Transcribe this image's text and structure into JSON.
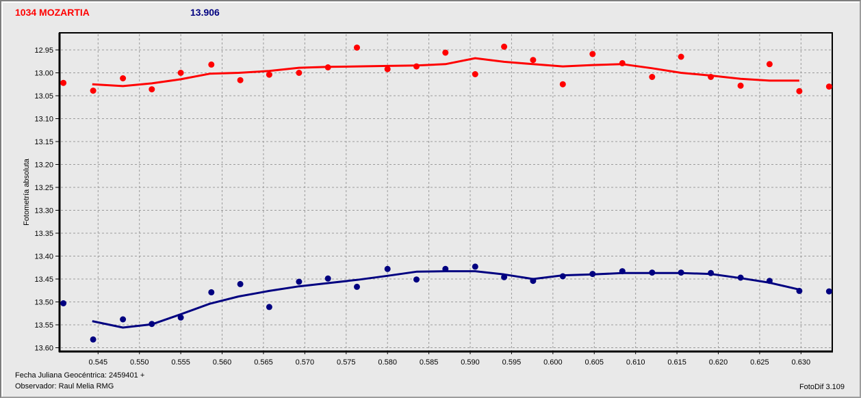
{
  "header": {
    "object": "1034 MOZARTIA",
    "value": "13.906",
    "object_color": "#FF0000",
    "value_color": "#000080"
  },
  "footer": {
    "julian_date": "Fecha Juliana Geocéntrica: 2459401 +",
    "observer": "Observador: Raul Melia RMG",
    "software": "FotoDif 3.109"
  },
  "chart_data": {
    "type": "scatter",
    "title": "1034 MOZARTIA",
    "annotation_value": "13.906",
    "xlabel": "",
    "ylabel": "Fotometría absoluta",
    "x_axis": {
      "min": 0.54034,
      "max": 0.63378,
      "ticks": [
        0.545,
        0.55,
        0.555,
        0.56,
        0.565,
        0.57,
        0.575,
        0.58,
        0.585,
        0.59,
        0.595,
        0.6,
        0.605,
        0.61,
        0.615,
        0.62,
        0.625,
        0.63
      ],
      "tick_decimals": 3
    },
    "y_axis": {
      "min": 12.9127,
      "max": 13.6082,
      "inverted": true,
      "ticks": [
        12.95,
        13.0,
        13.05,
        13.1,
        13.15,
        13.2,
        13.25,
        13.3,
        13.35,
        13.4,
        13.45,
        13.5,
        13.55,
        13.6
      ],
      "tick_decimals": 2
    },
    "grid": {
      "on": true,
      "color": "#9A9A9A",
      "dash": "3 3"
    },
    "series": [
      {
        "name": "red-series",
        "color": "#FF0000",
        "marker": "circle",
        "points": [
          [
            0.5408,
            13.022
          ],
          [
            0.5444,
            13.039
          ],
          [
            0.548,
            13.012
          ],
          [
            0.5515,
            13.036
          ],
          [
            0.555,
            13.0
          ],
          [
            0.5587,
            12.982
          ],
          [
            0.5622,
            13.016
          ],
          [
            0.5657,
            13.004
          ],
          [
            0.5693,
            13.0
          ],
          [
            0.5728,
            12.988
          ],
          [
            0.5763,
            12.945
          ],
          [
            0.58,
            12.992
          ],
          [
            0.5835,
            12.986
          ],
          [
            0.587,
            12.956
          ],
          [
            0.5906,
            13.003
          ],
          [
            0.5941,
            12.943
          ],
          [
            0.5976,
            12.972
          ],
          [
            0.6012,
            13.025
          ],
          [
            0.6048,
            12.959
          ],
          [
            0.6084,
            12.979
          ],
          [
            0.612,
            13.009
          ],
          [
            0.6155,
            12.965
          ],
          [
            0.6191,
            13.009
          ],
          [
            0.6227,
            13.028
          ],
          [
            0.6262,
            12.981
          ],
          [
            0.6298,
            13.04
          ],
          [
            0.6334,
            13.03
          ]
        ],
        "fit_line": [
          [
            0.5443,
            13.025
          ],
          [
            0.548,
            13.029
          ],
          [
            0.5515,
            13.023
          ],
          [
            0.555,
            13.014
          ],
          [
            0.5585,
            13.002
          ],
          [
            0.562,
            13.0
          ],
          [
            0.5657,
            12.996
          ],
          [
            0.5693,
            12.989
          ],
          [
            0.5728,
            12.987
          ],
          [
            0.58,
            12.985
          ],
          [
            0.5835,
            12.984
          ],
          [
            0.587,
            12.981
          ],
          [
            0.5906,
            12.968
          ],
          [
            0.5941,
            12.976
          ],
          [
            0.5976,
            12.981
          ],
          [
            0.6012,
            12.986
          ],
          [
            0.6048,
            12.983
          ],
          [
            0.6084,
            12.981
          ],
          [
            0.612,
            12.99
          ],
          [
            0.6155,
            13.0
          ],
          [
            0.6191,
            13.006
          ],
          [
            0.6227,
            13.013
          ],
          [
            0.6262,
            13.017
          ],
          [
            0.6298,
            13.017
          ]
        ]
      },
      {
        "name": "blue-series",
        "color": "#000080",
        "marker": "circle",
        "points": [
          [
            0.5408,
            13.503
          ],
          [
            0.5444,
            13.582
          ],
          [
            0.548,
            13.538
          ],
          [
            0.5515,
            13.548
          ],
          [
            0.555,
            13.534
          ],
          [
            0.5587,
            13.479
          ],
          [
            0.5622,
            13.461
          ],
          [
            0.5657,
            13.511
          ],
          [
            0.5693,
            13.456
          ],
          [
            0.5728,
            13.449
          ],
          [
            0.5763,
            13.467
          ],
          [
            0.58,
            13.428
          ],
          [
            0.5835,
            13.451
          ],
          [
            0.587,
            13.428
          ],
          [
            0.5906,
            13.423
          ],
          [
            0.5941,
            13.446
          ],
          [
            0.5976,
            13.454
          ],
          [
            0.6012,
            13.444
          ],
          [
            0.6048,
            13.439
          ],
          [
            0.6084,
            13.433
          ],
          [
            0.612,
            13.436
          ],
          [
            0.6155,
            13.436
          ],
          [
            0.6191,
            13.437
          ],
          [
            0.6227,
            13.447
          ],
          [
            0.6262,
            13.454
          ],
          [
            0.6298,
            13.476
          ],
          [
            0.6334,
            13.477
          ]
        ],
        "fit_line": [
          [
            0.5443,
            13.542
          ],
          [
            0.548,
            13.556
          ],
          [
            0.5515,
            13.549
          ],
          [
            0.555,
            13.527
          ],
          [
            0.5585,
            13.504
          ],
          [
            0.562,
            13.488
          ],
          [
            0.5657,
            13.476
          ],
          [
            0.5693,
            13.466
          ],
          [
            0.5728,
            13.459
          ],
          [
            0.5763,
            13.452
          ],
          [
            0.58,
            13.443
          ],
          [
            0.5835,
            13.434
          ],
          [
            0.587,
            13.433
          ],
          [
            0.5906,
            13.433
          ],
          [
            0.5941,
            13.44
          ],
          [
            0.5976,
            13.45
          ],
          [
            0.6012,
            13.442
          ],
          [
            0.6048,
            13.44
          ],
          [
            0.6084,
            13.437
          ],
          [
            0.612,
            13.437
          ],
          [
            0.6155,
            13.437
          ],
          [
            0.6191,
            13.439
          ],
          [
            0.6227,
            13.448
          ],
          [
            0.6262,
            13.458
          ],
          [
            0.6298,
            13.473
          ]
        ]
      }
    ]
  }
}
